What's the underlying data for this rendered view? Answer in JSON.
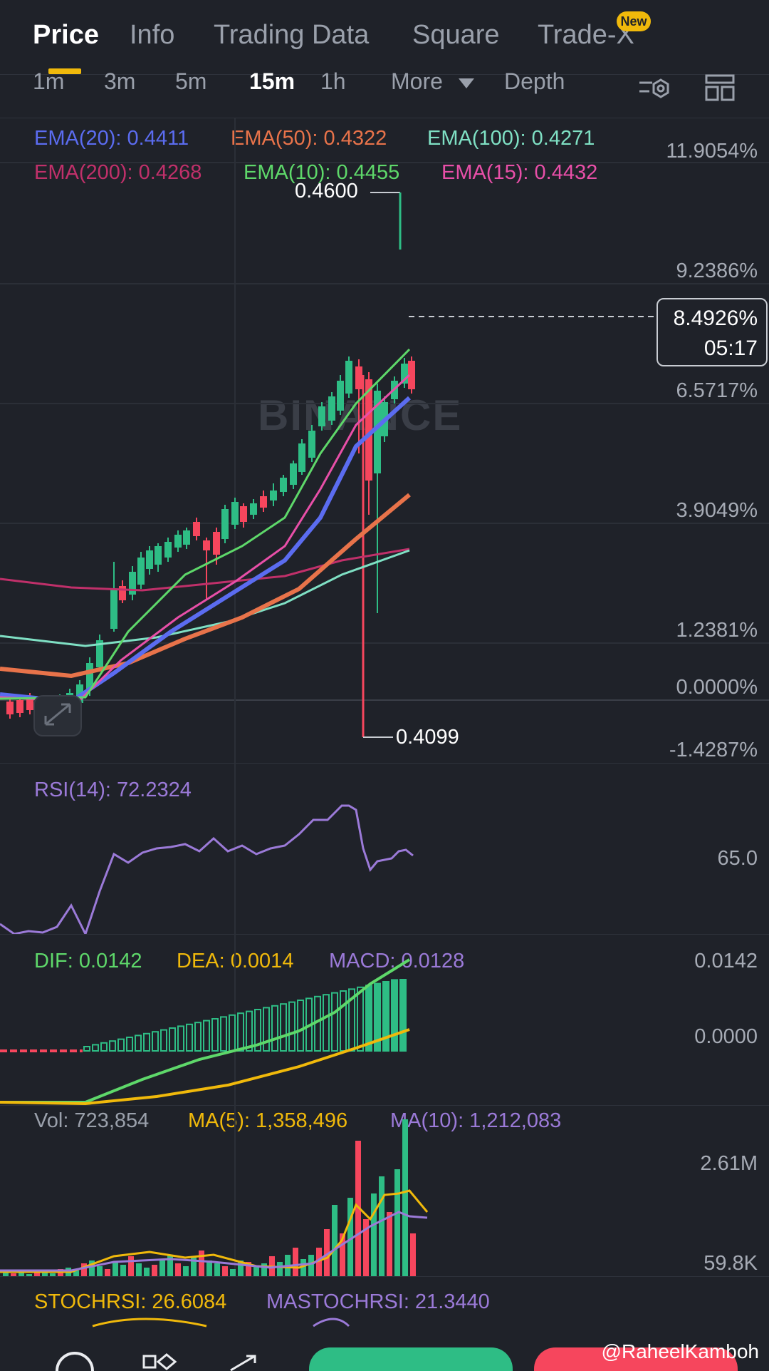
{
  "top_tabs": [
    {
      "label": "Price",
      "active": true
    },
    {
      "label": "Info"
    },
    {
      "label": "Trading Data"
    },
    {
      "label": "Square"
    },
    {
      "label": "Trade-X",
      "badge": "New"
    }
  ],
  "intervals": [
    "1m",
    "3m",
    "5m",
    "15m",
    "1h",
    "More",
    "Depth"
  ],
  "active_interval": "15m",
  "ema_legend": [
    {
      "label": "EMA(20): 0.4411",
      "color": "#5b6cf0"
    },
    {
      "label": "EMA(50): 0.4322",
      "color": "#e8734a"
    },
    {
      "label": "EMA(100): 0.4271",
      "color": "#7fe0c4"
    },
    {
      "label": "EMA(200): 0.4268",
      "color": "#c0306a"
    },
    {
      "label": "EMA(10): 0.4455",
      "color": "#5ed86a"
    },
    {
      "label": "EMA(15): 0.4432",
      "color": "#e84fa8"
    }
  ],
  "price_axis": [
    "11.9054%",
    "9.2386%",
    "6.5717%",
    "3.9049%",
    "1.2381%",
    "0.0000%",
    "-1.4287%"
  ],
  "high_label": "0.4600",
  "low_label": "0.4099",
  "current": {
    "pct": "8.4926%",
    "countdown": "05:17"
  },
  "brand_watermark": "BINANCE",
  "rsi": {
    "label": "RSI(14): 72.2324",
    "level": "65.0",
    "color": "#9b7ad8"
  },
  "macd": {
    "dif": "DIF: 0.0142",
    "dea": "DEA: 0.0014",
    "macd": "MACD: 0.0128",
    "axis": [
      "0.0142",
      "0.0000"
    ]
  },
  "vol": {
    "vol": "Vol: 723,854",
    "ma5": "MA(5): 1,358,496",
    "ma10": "MA(10): 1,212,083",
    "axis": [
      "2.61M",
      "59.8K"
    ]
  },
  "stoch": {
    "stoch": "STOCHRSI: 26.6084",
    "mastoch": "MASTOCHRSI: 21.3440"
  },
  "watermark_user": "@RaheelKamboh",
  "colors": {
    "up": "#2ebd85",
    "down": "#f6465d",
    "accent": "#f0b90b"
  }
}
